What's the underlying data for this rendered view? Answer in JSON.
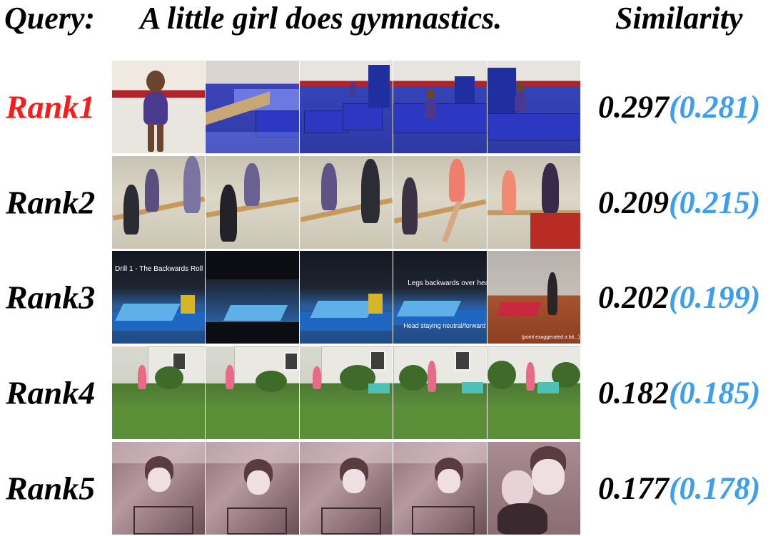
{
  "header": {
    "query_label": "Query:",
    "query_text": "A little girl does gymnastics.",
    "similarity_label": "Similarity"
  },
  "rows": [
    {
      "rank": "Rank1",
      "score": "0.297",
      "score_alt": "(0.281)"
    },
    {
      "rank": "Rank2",
      "score": "0.209",
      "score_alt": "(0.215)"
    },
    {
      "rank": "Rank3",
      "score": "0.202",
      "score_alt": "(0.199)"
    },
    {
      "rank": "Rank4",
      "score": "0.182",
      "score_alt": "(0.185)"
    },
    {
      "rank": "Rank5",
      "score": "0.177",
      "score_alt": "(0.178)"
    }
  ],
  "frame_captions": {
    "r3_f1": "Drill 1 - The Backwards Roll",
    "r3_f4_top": "Legs backwards over head",
    "r3_f4_bottom": "Head staying neutral/forward",
    "r3_f5": "(point exaggerated a bit...)"
  },
  "colors": {
    "rank1": "#ff1a1a",
    "score_alt": "#3a9ff0",
    "text": "#000000"
  }
}
